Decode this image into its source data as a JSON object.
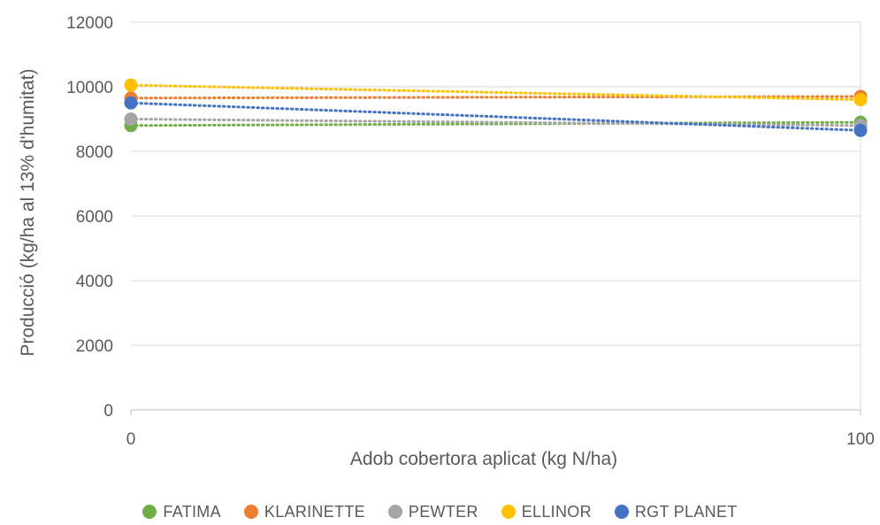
{
  "chart_data": {
    "type": "line",
    "x": [
      0,
      100
    ],
    "xticks": [
      "0",
      "100"
    ],
    "yticks": [
      "0",
      "2000",
      "4000",
      "6000",
      "8000",
      "10000",
      "12000"
    ],
    "ylim": [
      0,
      12000
    ],
    "xlabel": "Adob cobertora aplicat (kg N/ha)",
    "ylabel": "Producció (kg/ha al 13% d'humitat)",
    "grid": "horizontal",
    "legend": "bottom",
    "series": [
      {
        "name": "FATIMA",
        "color": "#70ad47",
        "values": [
          8800,
          8900
        ]
      },
      {
        "name": "KLARINETTE",
        "color": "#ed7d31",
        "values": [
          9650,
          9700
        ]
      },
      {
        "name": "PEWTER",
        "color": "#a5a5a5",
        "values": [
          9000,
          8800
        ]
      },
      {
        "name": "ELLINOR",
        "color": "#ffc000",
        "values": [
          10050,
          9600
        ]
      },
      {
        "name": "RGT PLANET",
        "color": "#4472c4",
        "values": [
          9500,
          8650
        ]
      }
    ]
  }
}
